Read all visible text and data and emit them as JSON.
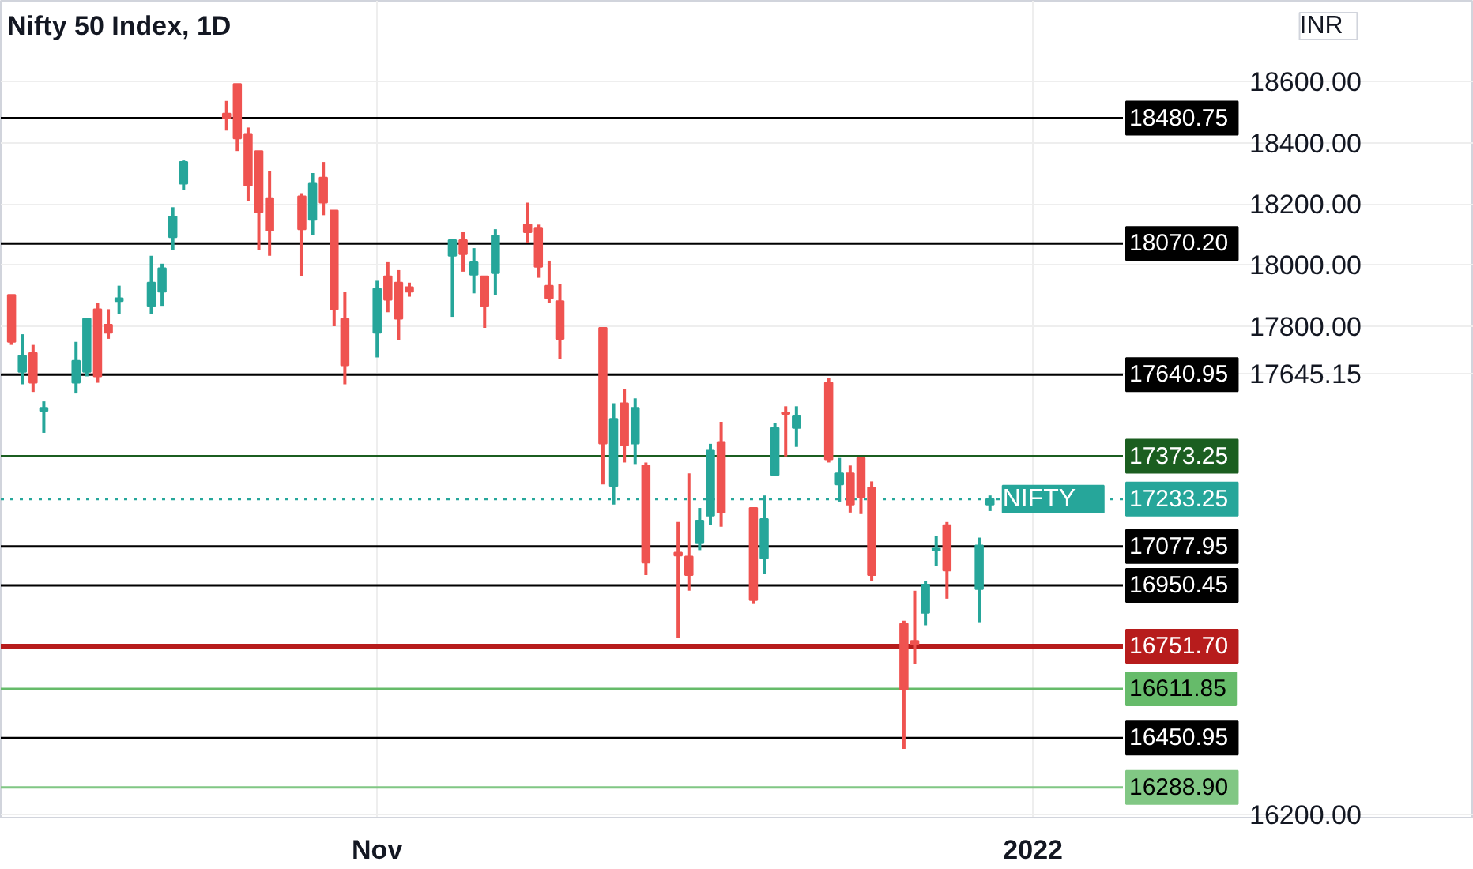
{
  "chart_data": {
    "type": "candlestick",
    "title": "Nifty 50 Index, 1D",
    "x": [
      "2021-09-28",
      "2021-09-29",
      "2021-09-30",
      "2021-10-01",
      "2021-10-04",
      "2021-10-05",
      "2021-10-06",
      "2021-10-07",
      "2021-10-08",
      "2021-10-11",
      "2021-10-12",
      "2021-10-13",
      "2021-10-14",
      "2021-10-18",
      "2021-10-19",
      "2021-10-20",
      "2021-10-21",
      "2021-10-22",
      "2021-10-25",
      "2021-10-26",
      "2021-10-27",
      "2021-10-28",
      "2021-10-29",
      "2021-11-01",
      "2021-11-02",
      "2021-11-03",
      "2021-11-04",
      "2021-11-08",
      "2021-11-09",
      "2021-11-10",
      "2021-11-11",
      "2021-11-12",
      "2021-11-15",
      "2021-11-16",
      "2021-11-17",
      "2021-11-18",
      "2021-11-22",
      "2021-11-23",
      "2021-11-24",
      "2021-11-25",
      "2021-11-26",
      "2021-11-29",
      "2021-11-30",
      "2021-12-01",
      "2021-12-02",
      "2021-12-03",
      "2021-12-06",
      "2021-12-07",
      "2021-12-08",
      "2021-12-09",
      "2021-12-10",
      "2021-12-13",
      "2021-12-14",
      "2021-12-15",
      "2021-12-16",
      "2021-12-17",
      "2021-12-20",
      "2021-12-21",
      "2021-12-22",
      "2021-12-23",
      "2021-12-24",
      "2021-12-27",
      "2021-12-28"
    ],
    "ohlc": [
      [
        17902,
        17902,
        17738,
        17748
      ],
      [
        17650,
        17773,
        17609,
        17702
      ],
      [
        17712,
        17738,
        17584,
        17614
      ],
      [
        17522,
        17553,
        17450,
        17532
      ],
      [
        17614,
        17748,
        17579,
        17686
      ],
      [
        17650,
        17824,
        17635,
        17824
      ],
      [
        17855,
        17876,
        17614,
        17635
      ],
      [
        17804,
        17855,
        17758,
        17778
      ],
      [
        17881,
        17932,
        17840,
        17891
      ],
      [
        17866,
        18030,
        17840,
        17942
      ],
      [
        17912,
        18004,
        17866,
        17989
      ],
      [
        18091,
        18189,
        18050,
        18158
      ],
      [
        18266,
        18342,
        18245,
        18337
      ],
      [
        18496,
        18537,
        18440,
        18481
      ],
      [
        18593,
        18593,
        18373,
        18414
      ],
      [
        18429,
        18450,
        18209,
        18260
      ],
      [
        18373,
        18373,
        18050,
        18173
      ],
      [
        18219,
        18307,
        18030,
        18112
      ],
      [
        18225,
        18235,
        17963,
        18117
      ],
      [
        18148,
        18301,
        18097,
        18266
      ],
      [
        18286,
        18337,
        18163,
        18204
      ],
      [
        18178,
        18178,
        17799,
        17855
      ],
      [
        17824,
        17912,
        17609,
        17671
      ],
      [
        17778,
        17948,
        17697,
        17922
      ],
      [
        17963,
        18009,
        17845,
        17886
      ],
      [
        17942,
        17983,
        17753,
        17824
      ],
      [
        17927,
        17942,
        17896,
        17912
      ],
      [
        18030,
        18081,
        17830,
        18081
      ],
      [
        18081,
        18107,
        17978,
        18035
      ],
      [
        17968,
        18055,
        17907,
        18009
      ],
      [
        17963,
        17963,
        17794,
        17866
      ],
      [
        17973,
        18117,
        17902,
        18096
      ],
      [
        18132,
        18204,
        18071,
        18107
      ],
      [
        18122,
        18132,
        17958,
        17994
      ],
      [
        17932,
        18014,
        17876,
        17891
      ],
      [
        17881,
        17937,
        17691,
        17758
      ],
      [
        17794,
        17794,
        17281,
        17415
      ],
      [
        17276,
        17547,
        17215,
        17496
      ],
      [
        17547,
        17594,
        17353,
        17409
      ],
      [
        17415,
        17563,
        17348,
        17532
      ],
      [
        17343,
        17353,
        16984,
        17025
      ],
      [
        17058,
        17158,
        16779,
        17048
      ],
      [
        17045,
        17317,
        16933,
        16984
      ],
      [
        17091,
        17204,
        17066,
        17163
      ],
      [
        17179,
        17414,
        17148,
        17394
      ],
      [
        17420,
        17486,
        17143,
        17189
      ],
      [
        17204,
        17204,
        16892,
        16902
      ],
      [
        17040,
        17245,
        16989,
        17168
      ],
      [
        17312,
        17481,
        17312,
        17466
      ],
      [
        17517,
        17537,
        17373,
        17512
      ],
      [
        17466,
        17537,
        17404,
        17507
      ],
      [
        17614,
        17630,
        17353,
        17363
      ],
      [
        17281,
        17368,
        17225,
        17317
      ],
      [
        17317,
        17343,
        17189,
        17215
      ],
      [
        17368,
        17368,
        17184,
        17240
      ],
      [
        17271,
        17291,
        16964,
        16984
      ],
      [
        16825,
        16835,
        16415,
        16610
      ],
      [
        16769,
        16933,
        16692,
        16758
      ],
      [
        16861,
        16964,
        16820,
        16953
      ],
      [
        17066,
        17112,
        17015,
        17071
      ],
      [
        17148,
        17158,
        16907,
        16999
      ],
      [
        16938,
        17107,
        16830,
        17081
      ],
      [
        17215,
        17245,
        17194,
        17233
      ]
    ],
    "colors": [
      "#ef5350",
      "#26a69a",
      "#ef5350",
      "#26a69a",
      "#26a69a",
      "#26a69a",
      "#ef5350",
      "#ef5350",
      "#26a69a",
      "#26a69a",
      "#26a69a",
      "#26a69a",
      "#26a69a",
      "#ef5350",
      "#ef5350",
      "#ef5350",
      "#ef5350",
      "#ef5350",
      "#ef5350",
      "#26a69a",
      "#ef5350",
      "#ef5350",
      "#ef5350",
      "#26a69a",
      "#ef5350",
      "#ef5350",
      "#ef5350",
      "#26a69a",
      "#ef5350",
      "#26a69a",
      "#ef5350",
      "#26a69a",
      "#ef5350",
      "#ef5350",
      "#ef5350",
      "#ef5350",
      "#ef5350",
      "#26a69a",
      "#ef5350",
      "#26a69a",
      "#ef5350",
      "#ef5350",
      "#ef5350",
      "#26a69a",
      "#26a69a",
      "#ef5350",
      "#ef5350",
      "#26a69a",
      "#26a69a",
      "#ef5350",
      "#26a69a",
      "#ef5350",
      "#26a69a",
      "#ef5350",
      "#ef5350",
      "#ef5350",
      "#ef5350",
      "#ef5350",
      "#26a69a",
      "#26a69a",
      "#ef5350",
      "#26a69a",
      "#26a69a"
    ],
    "xlim": [
      "2021-09-27",
      "2022-02-11"
    ],
    "xticks": [
      {
        "value": "2021-11-01",
        "label": "Nov"
      },
      {
        "value": "2022-01-01",
        "label": "2022"
      }
    ],
    "ylim": [
      16190,
      18865
    ],
    "yticks": [
      {
        "value": 16200,
        "label": "16200.00"
      },
      {
        "value": 17645.15,
        "label": "17645.15"
      },
      {
        "value": 17800,
        "label": "17800.00"
      },
      {
        "value": 18000,
        "label": "18000.00"
      },
      {
        "value": 18200,
        "label": "18200.00"
      },
      {
        "value": 18400,
        "label": "18400.00"
      },
      {
        "value": 18600,
        "label": "18600.00"
      }
    ],
    "grid": true,
    "ref_lines": [
      {
        "axis": "y",
        "value": 18480.75,
        "label": "18480.75",
        "color": "#000000"
      },
      {
        "axis": "y",
        "value": 18070.2,
        "label": "18070.20",
        "color": "#000000"
      },
      {
        "axis": "y",
        "value": 17640.95,
        "label": "17640.95",
        "color": "#000000"
      },
      {
        "axis": "y",
        "value": 17373.25,
        "label": "17373.25",
        "color": "#1b5e20"
      },
      {
        "axis": "y",
        "value": 17233.25,
        "label": "17233.25",
        "color": "#26a69a",
        "line_style": "dotted"
      },
      {
        "axis": "y",
        "value": 17077.95,
        "label": "17077.95",
        "color": "#000000"
      },
      {
        "axis": "y",
        "value": 16950.45,
        "label": "16950.45",
        "color": "#000000"
      },
      {
        "axis": "y",
        "value": 16751.7,
        "label": "16751.70",
        "color": "#b71c1c"
      },
      {
        "axis": "y",
        "value": 16611.85,
        "label": "16611.85",
        "color": "#66bb6a"
      },
      {
        "axis": "y",
        "value": 16450.95,
        "label": "16450.95",
        "color": "#000000"
      },
      {
        "axis": "y",
        "value": 16288.9,
        "label": "16288.90",
        "color": "#81c784"
      }
    ],
    "annotations": [
      "INR",
      "NIFTY"
    ]
  }
}
